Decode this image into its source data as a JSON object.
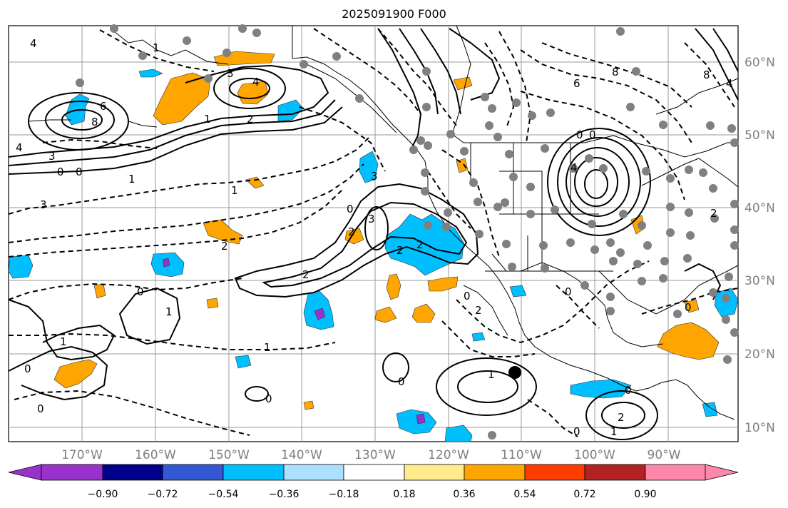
{
  "title": "2025091900 F000",
  "map": {
    "lon_labels": [
      "170°W",
      "160°W",
      "150°W",
      "140°W",
      "130°W",
      "120°W",
      "110°W",
      "100°W",
      "90°W"
    ],
    "lat_labels": [
      "60°N",
      "50°N",
      "40°N",
      "30°N",
      "20°N",
      "10°N"
    ],
    "gridline_color": "#999999",
    "contour_color": "#000000",
    "contour_labels": [
      "4",
      "1",
      "3",
      "4",
      "2",
      "1",
      "6",
      "8",
      "4",
      "3",
      "1",
      "0",
      "0",
      "1",
      "3",
      "2",
      "3",
      "0",
      "3",
      "2",
      "2",
      "0",
      "2",
      "0",
      "2",
      "0",
      "4",
      "8",
      "6",
      "8",
      "0",
      "4",
      "0",
      "2",
      "0",
      "1",
      "0",
      "1",
      "0",
      "0",
      "1",
      "1",
      "0",
      "2",
      "0",
      "1",
      "0",
      "2"
    ]
  },
  "colorbar": {
    "labels": [
      "−0.90",
      "−0.72",
      "−0.54",
      "−0.36",
      "−0.18",
      "0.18",
      "0.36",
      "0.54",
      "0.72",
      "0.90"
    ],
    "colors": [
      "#9932cc",
      "#00008b",
      "#3358d1",
      "#00bfff",
      "#addfff",
      "#ffffff",
      "#ffeb8a",
      "#ffa500",
      "#ff3c00",
      "#b22222",
      "#ff88aa"
    ]
  }
}
